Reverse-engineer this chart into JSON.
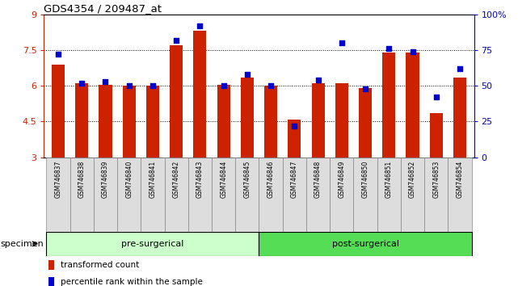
{
  "title": "GDS4354 / 209487_at",
  "samples": [
    "GSM746837",
    "GSM746838",
    "GSM746839",
    "GSM746840",
    "GSM746841",
    "GSM746842",
    "GSM746843",
    "GSM746844",
    "GSM746845",
    "GSM746846",
    "GSM746847",
    "GSM746848",
    "GSM746849",
    "GSM746850",
    "GSM746851",
    "GSM746852",
    "GSM746853",
    "GSM746854"
  ],
  "red_values": [
    6.9,
    6.1,
    6.05,
    6.0,
    6.0,
    7.7,
    8.3,
    6.05,
    6.35,
    6.0,
    4.6,
    6.1,
    6.1,
    5.9,
    7.4,
    7.4,
    4.85,
    6.35
  ],
  "blue_values": [
    72,
    52,
    53,
    50,
    50,
    82,
    92,
    50,
    58,
    50,
    22,
    54,
    80,
    48,
    76,
    74,
    42,
    62
  ],
  "ymin": 3.0,
  "ymax": 9.0,
  "yticks": [
    3.0,
    4.5,
    6.0,
    7.5,
    9.0
  ],
  "ytick_labels": [
    "3",
    "4.5",
    "6",
    "7.5",
    "9"
  ],
  "y2min": 0,
  "y2max": 100,
  "y2ticks": [
    0,
    25,
    50,
    75,
    100
  ],
  "y2tick_labels": [
    "0",
    "25",
    "50",
    "75",
    "100%"
  ],
  "bar_color": "#CC2200",
  "dot_color": "#0000CC",
  "pre_surgical_count": 9,
  "post_surgical_count": 9,
  "pre_surgical_label": "pre-surgerical",
  "post_surgical_label": "post-surgerical",
  "group_colors": [
    "#CCFFCC",
    "#55DD55"
  ],
  "xlabel_text": "specimen",
  "legend_red": "transformed count",
  "legend_blue": "percentile rank within the sample",
  "bg_color": "#FFFFFF",
  "tick_label_color_left": "#CC2200",
  "tick_label_color_right": "#0000CC",
  "tickbox_color": "#DDDDDD",
  "tickbox_border": "#888888"
}
